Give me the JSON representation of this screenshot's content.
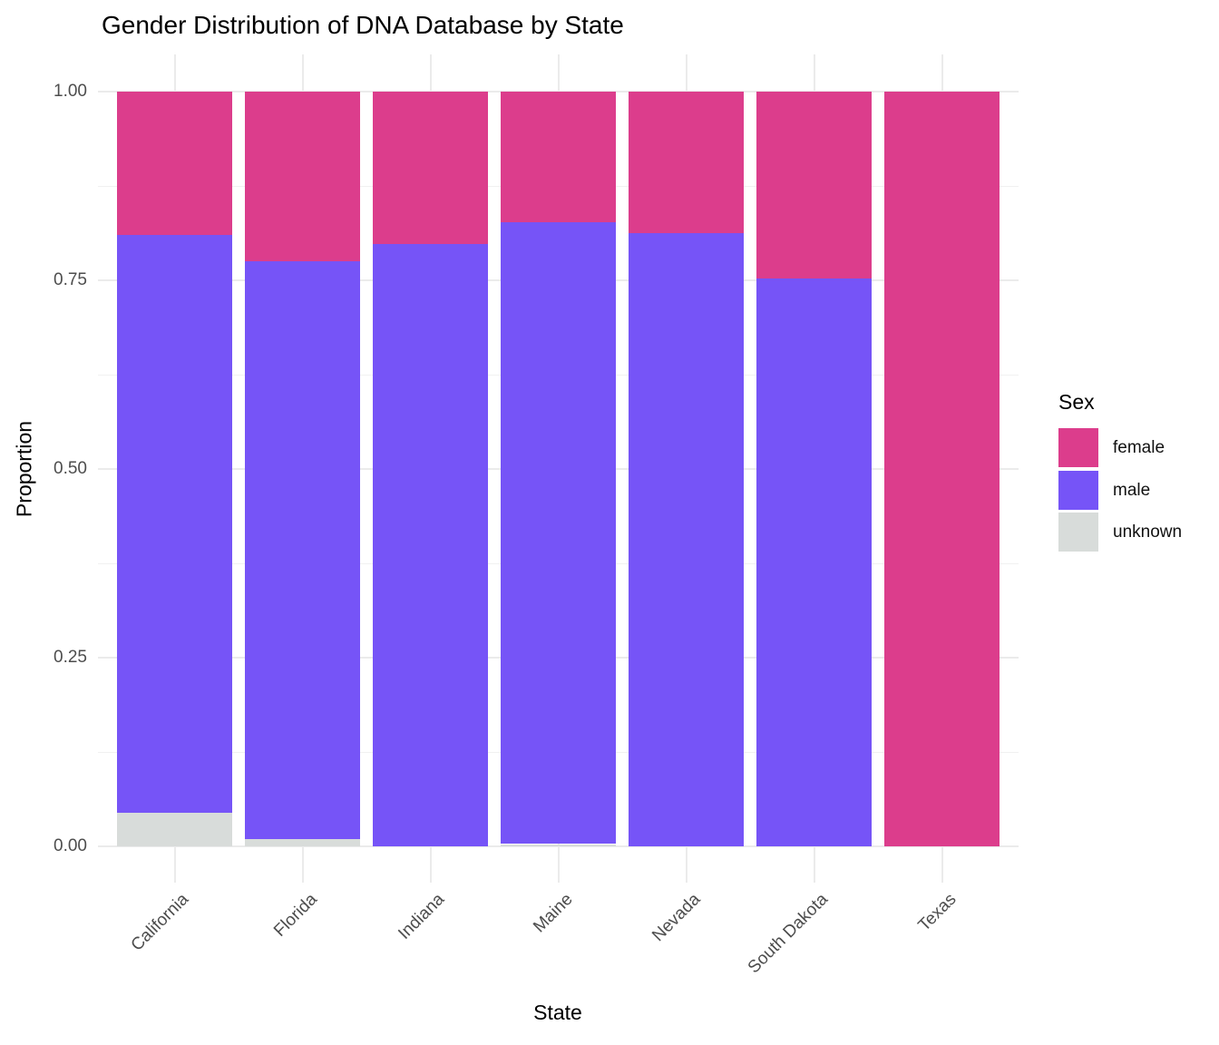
{
  "chart_data": {
    "type": "bar",
    "stacked": true,
    "orientation": "vertical",
    "title": "Gender Distribution of DNA Database by State",
    "xlabel": "State",
    "ylabel": "Proportion",
    "categories": [
      "California",
      "Florida",
      "Indiana",
      "Maine",
      "Nevada",
      "South Dakota",
      "Texas"
    ],
    "series": [
      {
        "name": "unknown",
        "color": "#d8dcda",
        "values": [
          0.045,
          0.01,
          0.0,
          0.003,
          0.0,
          0.0,
          0.0
        ]
      },
      {
        "name": "male",
        "color": "#7654f7",
        "values": [
          0.765,
          0.765,
          0.798,
          0.824,
          0.813,
          0.753,
          0.0
        ]
      },
      {
        "name": "female",
        "color": "#dc3d8c",
        "values": [
          0.19,
          0.225,
          0.202,
          0.173,
          0.187,
          0.247,
          1.0
        ]
      }
    ],
    "ylim": [
      0,
      1
    ],
    "yticks": [
      {
        "value": 0.0,
        "label": "0.00"
      },
      {
        "value": 0.25,
        "label": "0.25"
      },
      {
        "value": 0.5,
        "label": "0.50"
      },
      {
        "value": 0.75,
        "label": "0.75"
      },
      {
        "value": 1.0,
        "label": "1.00"
      }
    ],
    "minor_ticks": [
      0.125,
      0.375,
      0.625,
      0.875
    ],
    "grid": true,
    "legend": {
      "title": "Sex",
      "position": "right",
      "entries": [
        {
          "label": "female",
          "color": "#dc3d8c"
        },
        {
          "label": "male",
          "color": "#7654f7"
        },
        {
          "label": "unknown",
          "color": "#d8dcda"
        }
      ]
    }
  }
}
